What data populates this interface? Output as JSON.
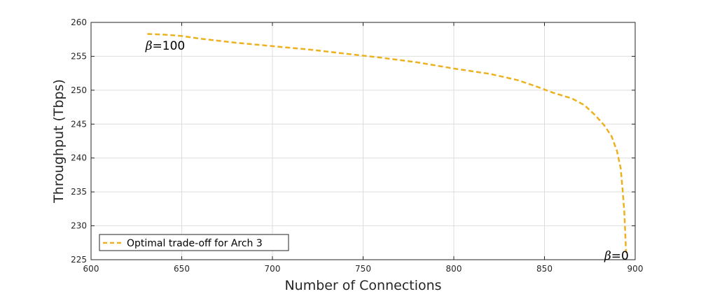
{
  "chart_data": {
    "type": "line",
    "xlabel": "Number of Connections",
    "ylabel": "Throughput (Tbps)",
    "xlim": [
      600,
      900
    ],
    "ylim": [
      225,
      260
    ],
    "x_ticks": [
      600,
      650,
      700,
      750,
      800,
      850,
      900
    ],
    "y_ticks": [
      225,
      230,
      235,
      240,
      245,
      250,
      255,
      260
    ],
    "grid": true,
    "legend_position": "bottom-left",
    "series": [
      {
        "name": "Optimal trade-off for Arch 3",
        "color": "#EDB120",
        "line_style": "dashed",
        "x": [
          631,
          640,
          650,
          660,
          680,
          700,
          720,
          740,
          760,
          780,
          800,
          820,
          835,
          845,
          855,
          865,
          872,
          878,
          883,
          887,
          890,
          892,
          893,
          894,
          894.5,
          895
        ],
        "y": [
          258.3,
          258.2,
          258.0,
          257.6,
          257.0,
          256.5,
          256.0,
          255.4,
          254.8,
          254.1,
          253.2,
          252.4,
          251.5,
          250.6,
          249.6,
          248.8,
          247.8,
          246.3,
          244.8,
          243.2,
          241.0,
          238.5,
          235.5,
          232.0,
          229.0,
          226.0
        ]
      }
    ],
    "annotations": [
      {
        "symbol": "β",
        "text": "=100",
        "x": 630,
        "y": 256.6
      },
      {
        "symbol": "β",
        "text": "=0",
        "x": 883,
        "y": 225.6
      }
    ]
  }
}
